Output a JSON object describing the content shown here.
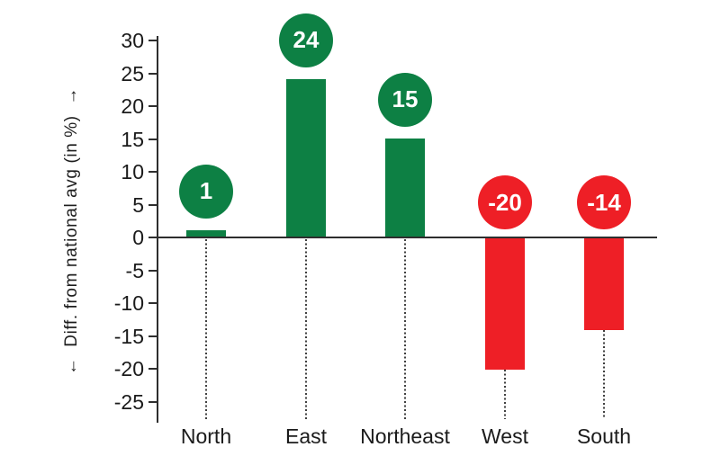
{
  "chart_data": {
    "type": "bar",
    "title": "",
    "categories": [
      "North",
      "East",
      "Northeast",
      "West",
      "South"
    ],
    "values": [
      1,
      24,
      15,
      -20,
      -14
    ],
    "value_labels": [
      "1",
      "24",
      "15",
      "-20",
      "-14"
    ],
    "xlabel": "",
    "ylabel": "←  Diff. from national avg (in %)  →",
    "yticks": [
      30,
      25,
      20,
      15,
      10,
      5,
      0,
      -5,
      -10,
      -15,
      -20,
      -25
    ],
    "ytick_labels": [
      "30",
      "25",
      "20",
      "15",
      "10",
      "5",
      "0",
      "-5",
      "-10",
      "-15",
      "-20",
      "-25"
    ],
    "ylim": [
      -28,
      31
    ],
    "grid": false,
    "legend": "none",
    "bar_value_markers": "circle-badges",
    "colors": {
      "positive": "#0d8044",
      "negative": "#ee1f26",
      "axis": "#2e2e2e",
      "text": "#1b1b1b",
      "badge_text": "#ffffff",
      "background": "#ffffff"
    }
  }
}
